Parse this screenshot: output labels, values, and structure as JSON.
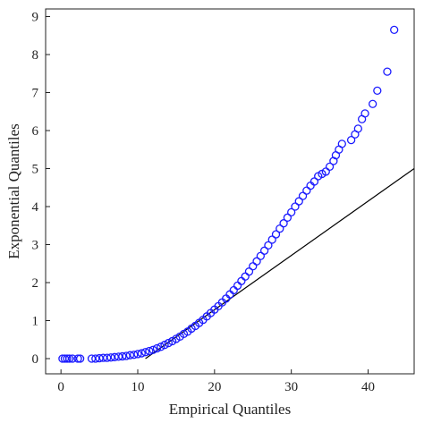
{
  "chart_data": {
    "type": "scatter",
    "title": "",
    "xlabel": "Empirical Quantiles",
    "ylabel": "Exponential Quantiles",
    "xlim": [
      -2,
      46
    ],
    "ylim": [
      -0.4,
      9.2
    ],
    "xticks": [
      0,
      10,
      20,
      30,
      40
    ],
    "yticks": [
      0,
      1,
      2,
      3,
      4,
      5,
      6,
      7,
      8,
      9
    ],
    "grid": false,
    "legend": "none",
    "colors": {
      "points": "#1a1aff",
      "reference_line": "#000000",
      "axes": "#222222"
    },
    "reference_line": {
      "x": [
        11,
        46
      ],
      "y": [
        0,
        5
      ]
    },
    "series": [
      {
        "marker": "circle-open",
        "x": [
          0.2,
          0.5,
          0.8,
          1.1,
          1.5,
          2.2,
          2.5,
          4.0,
          4.5,
          5.0,
          5.5,
          6.0,
          6.5,
          7.0,
          7.5,
          8.0,
          8.5,
          9.0,
          9.5,
          10.0,
          10.5,
          11.0,
          11.5,
          12.0,
          12.5,
          13.0,
          13.5,
          14.0,
          14.5,
          15.0,
          15.5,
          16.0,
          16.5,
          17.0,
          17.5,
          18.0,
          18.5,
          19.0,
          19.5,
          20.0,
          20.5,
          21.0,
          21.5,
          22.0,
          22.5,
          23.0,
          23.5,
          24.0,
          24.5,
          25.0,
          25.5,
          26.0,
          26.5,
          27.0,
          27.5,
          28.0,
          28.5,
          29.0,
          29.5,
          30.0,
          30.5,
          31.0,
          31.5,
          32.0,
          32.5,
          33.0,
          33.5,
          34.0,
          34.5,
          35.0,
          35.5,
          35.8,
          36.2,
          36.6,
          37.8,
          38.3,
          38.7,
          39.2,
          39.6,
          40.6,
          41.2,
          42.5,
          43.4
        ],
        "y": [
          0.0,
          0.0,
          0.0,
          0.0,
          0.0,
          0.0,
          0.0,
          0.0,
          0.0,
          0.01,
          0.02,
          0.02,
          0.03,
          0.04,
          0.05,
          0.06,
          0.07,
          0.09,
          0.1,
          0.12,
          0.14,
          0.17,
          0.2,
          0.23,
          0.27,
          0.31,
          0.36,
          0.41,
          0.46,
          0.52,
          0.58,
          0.65,
          0.71,
          0.79,
          0.86,
          0.94,
          1.02,
          1.11,
          1.2,
          1.29,
          1.38,
          1.48,
          1.58,
          1.69,
          1.8,
          1.92,
          2.04,
          2.16,
          2.29,
          2.43,
          2.56,
          2.7,
          2.84,
          2.98,
          3.13,
          3.27,
          3.42,
          3.56,
          3.71,
          3.85,
          4.0,
          4.14,
          4.28,
          4.42,
          4.55,
          4.66,
          4.8,
          4.86,
          4.92,
          5.05,
          5.2,
          5.35,
          5.5,
          5.65,
          5.75,
          5.9,
          6.05,
          6.3,
          6.45,
          6.7,
          7.05,
          7.55,
          8.65
        ]
      }
    ]
  }
}
